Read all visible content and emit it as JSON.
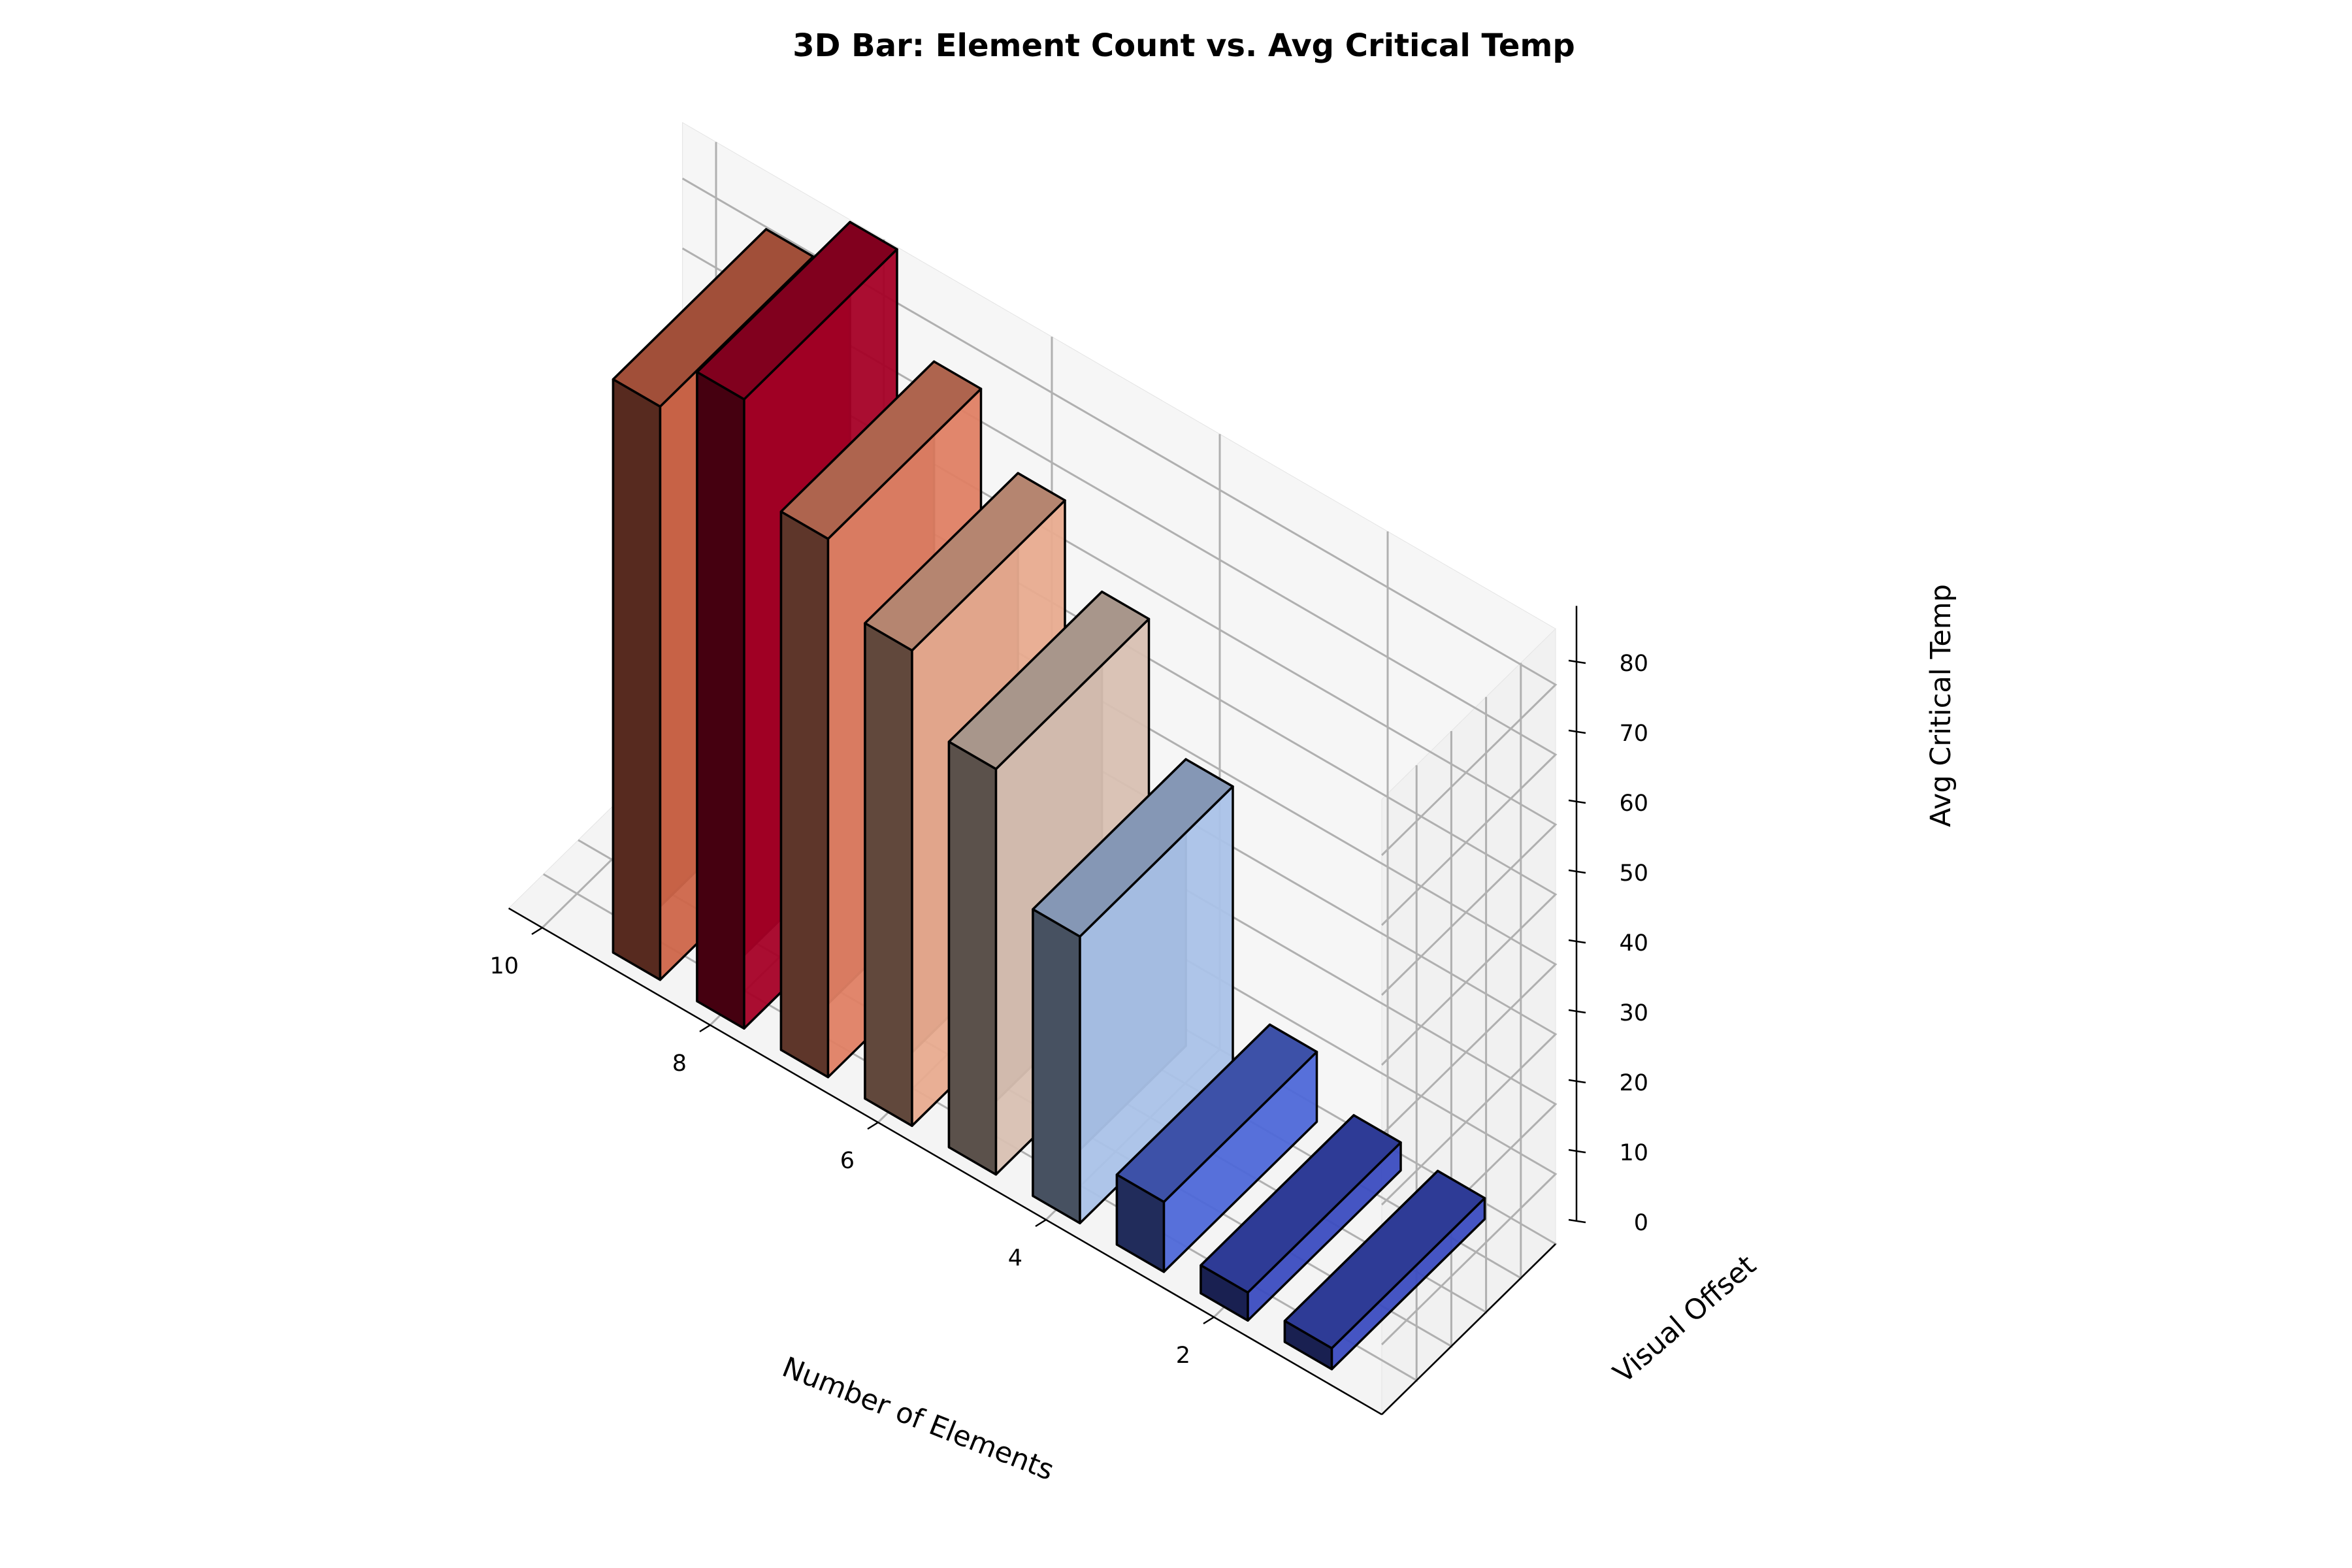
{
  "chart_data": {
    "type": "bar3d",
    "title": "3D Bar: Element Count vs. Avg Critical Temp",
    "xlabel": "Number of Elements",
    "ylabel": "Visual Offset",
    "zlabel": "Avg Critical Temp",
    "x_ticks": [
      "2",
      "4",
      "6",
      "8",
      "10"
    ],
    "z_ticks": [
      "0",
      "10",
      "20",
      "30",
      "40",
      "50",
      "60",
      "70",
      "80"
    ],
    "zlim": [
      0,
      88
    ],
    "grid": true,
    "colormap": "coolwarm",
    "bars": [
      {
        "x": 1,
        "value": 3,
        "color": "#3b4cc0"
      },
      {
        "x": 2,
        "value": 4,
        "color": "#3b4cc0"
      },
      {
        "x": 3,
        "value": 10,
        "color": "#4e68d8"
      },
      {
        "x": 4,
        "value": 41,
        "color": "#aac2e8"
      },
      {
        "x": 5,
        "value": 58,
        "color": "#d8c0b2"
      },
      {
        "x": 6,
        "value": 68,
        "color": "#e8ab8f"
      },
      {
        "x": 7,
        "value": 77,
        "color": "#df8064"
      },
      {
        "x": 8,
        "value": 90,
        "color": "#a50026"
      },
      {
        "x": 9,
        "value": 82,
        "color": "#ce6549"
      }
    ]
  }
}
